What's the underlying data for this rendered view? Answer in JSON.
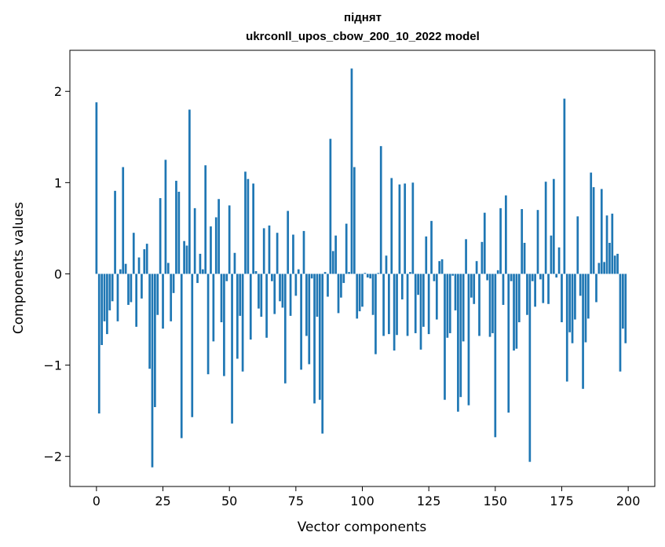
{
  "chart_data": {
    "type": "bar",
    "title": "піднят",
    "subtitle": "ukrconll_upos_cbow_200_10_2022 model",
    "xlabel": "Vector components",
    "ylabel": "Components values",
    "xlim": [
      -10,
      210
    ],
    "ylim": [
      -2.33,
      2.45
    ],
    "x_ticks": [
      0,
      25,
      50,
      75,
      100,
      125,
      150,
      175,
      200
    ],
    "x_tick_labels": [
      "0",
      "25",
      "50",
      "75",
      "100",
      "125",
      "150",
      "175",
      "200"
    ],
    "y_ticks": [
      -2,
      -1,
      0,
      1,
      2
    ],
    "y_tick_labels": [
      "−2",
      "−1",
      "0",
      "1",
      "2"
    ],
    "bar_color": "#1f77b4",
    "grid": false,
    "legend": false,
    "values": [
      1.88,
      -1.53,
      -0.78,
      -0.52,
      -0.66,
      -0.4,
      -0.3,
      0.91,
      -0.52,
      0.05,
      1.17,
      0.11,
      -0.34,
      -0.31,
      0.45,
      -0.58,
      0.18,
      -0.27,
      0.27,
      0.33,
      -1.04,
      -2.12,
      -1.46,
      -0.45,
      0.83,
      -0.6,
      1.25,
      0.12,
      -0.52,
      -0.21,
      1.02,
      0.9,
      -1.8,
      0.36,
      0.31,
      1.8,
      -1.57,
      0.72,
      -0.1,
      0.22,
      0.05,
      1.19,
      -1.1,
      0.52,
      -0.74,
      0.62,
      0.82,
      -0.53,
      -1.12,
      -0.08,
      0.75,
      -1.64,
      0.23,
      -0.93,
      -0.46,
      -1.07,
      1.12,
      1.04,
      -0.72,
      0.99,
      0.03,
      -0.38,
      -0.47,
      0.5,
      -0.7,
      0.53,
      -0.08,
      -0.44,
      0.45,
      -0.3,
      -0.37,
      -1.2,
      0.69,
      -0.46,
      0.43,
      -0.24,
      0.05,
      -1.05,
      0.47,
      -0.68,
      -0.99,
      -0.05,
      -1.42,
      -0.47,
      -1.38,
      -1.75,
      0.02,
      -0.25,
      1.48,
      0.25,
      0.42,
      -0.43,
      -0.26,
      -0.1,
      0.55,
      0.02,
      2.25,
      1.17,
      -0.49,
      -0.41,
      -0.36,
      0.01,
      -0.04,
      -0.05,
      -0.45,
      -0.88,
      0.01,
      1.4,
      -0.68,
      0.2,
      -0.66,
      1.05,
      -0.84,
      -0.67,
      0.98,
      -0.28,
      0.99,
      -0.68,
      0.02,
      1.0,
      -0.65,
      -0.23,
      -0.83,
      -0.58,
      0.41,
      -0.66,
      0.58,
      -0.08,
      -0.5,
      0.14,
      0.16,
      -1.38,
      -0.7,
      -0.65,
      -0.02,
      -0.4,
      -1.51,
      -1.35,
      -0.74,
      0.38,
      -1.44,
      -0.26,
      -0.33,
      0.14,
      -0.68,
      0.35,
      0.67,
      -0.07,
      -0.69,
      -0.65,
      -1.79,
      0.04,
      0.72,
      -0.34,
      0.86,
      -1.52,
      -0.08,
      -0.84,
      -0.82,
      -0.53,
      0.71,
      0.34,
      -0.45,
      -2.06,
      -0.08,
      -0.36,
      0.7,
      -0.06,
      -0.32,
      1.01,
      -0.33,
      0.42,
      1.04,
      -0.04,
      0.29,
      -0.53,
      1.92,
      -1.18,
      -0.64,
      -0.76,
      -0.5,
      0.63,
      -0.24,
      -1.26,
      -0.75,
      -0.49,
      1.11,
      0.95,
      -0.31,
      0.12,
      0.93,
      0.13,
      0.64,
      0.34,
      0.66,
      0.2,
      0.22,
      -1.07,
      -0.6,
      -0.76
    ]
  }
}
